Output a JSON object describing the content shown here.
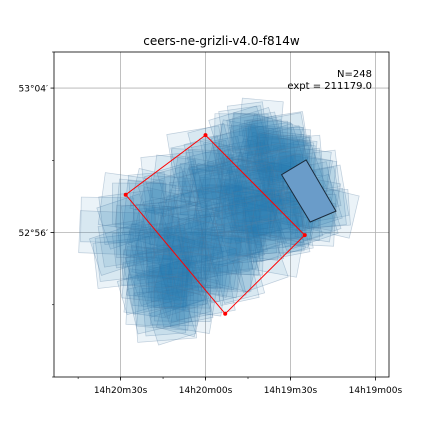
{
  "chart_data": {
    "type": "scatter",
    "title": "ceers-ne-grizli-v4.0-f814w",
    "annotation": {
      "n_label": "N=248",
      "expt_label": "expt = 211179.0",
      "position": "top-right"
    },
    "x_axis": {
      "inverted": true,
      "ticks": [
        {
          "value": 215.125,
          "label": "14h20m30s"
        },
        {
          "value": 215.0,
          "label": "14h20m00s"
        },
        {
          "value": 214.875,
          "label": "14h19m30s"
        },
        {
          "value": 214.75,
          "label": "14h19m00s"
        }
      ],
      "range": [
        215.223,
        214.73
      ]
    },
    "y_axis": {
      "ticks": [
        {
          "value": 52.9333,
          "label": "52°56′"
        },
        {
          "value": 53.0667,
          "label": "53°04′"
        }
      ],
      "range": [
        52.8,
        53.1
      ]
    },
    "grid": true,
    "footprint_colors": {
      "exposure_fill": "#1f77b4",
      "exposure_fill_opacity": 0.09,
      "exposure_edge": "#5a7fa0",
      "highlight_fill": "#6a9cc9",
      "highlight_edge": "#1a2a3a",
      "outline": "#ff0000"
    },
    "outline_polygon": [
      {
        "ra": 215.0,
        "dec": 53.0233
      },
      {
        "ra": 215.1175,
        "dec": 52.9683
      },
      {
        "ra": 214.971,
        "dec": 52.8583
      },
      {
        "ra": 214.854,
        "dec": 52.931
      }
    ],
    "highlight_polygon": [
      {
        "ra": 214.888,
        "dec": 52.9867
      },
      {
        "ra": 214.852,
        "dec": 53.0004
      },
      {
        "ra": 214.808,
        "dec": 52.9531
      },
      {
        "ra": 214.846,
        "dec": 52.9431
      }
    ]
  }
}
